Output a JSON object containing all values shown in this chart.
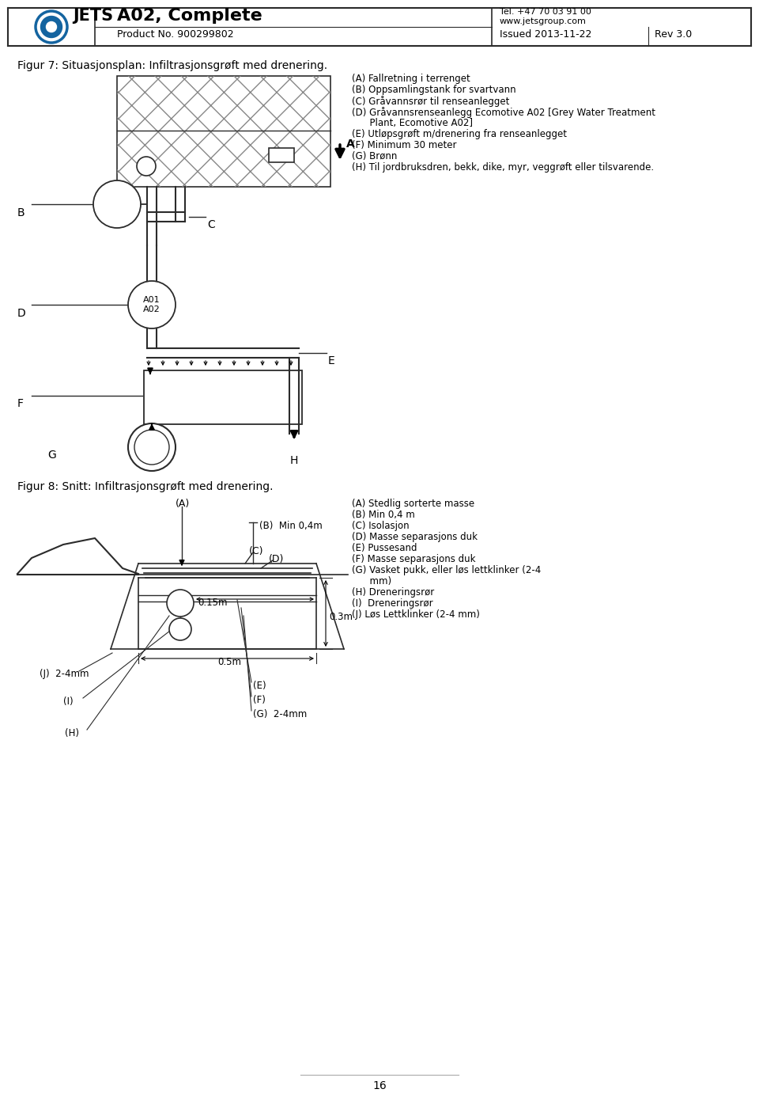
{
  "title": "A02, Complete",
  "product_no": "Product No. 900299802",
  "tel": "Tel. +47 70 03 91 00",
  "website": "www.jetsgroup.com",
  "issued": "Issued 2013-11-22",
  "rev": "Rev 3.0",
  "fig7_title": "Figur 7: Situasjonsplan: Infiltrasjonsgrøft med drenering.",
  "fig8_title": "Figur 8: Snitt: Infiltrasjonsgrøft med drenering.",
  "legend_right_top": [
    "(A) Fallretning i terrenget",
    "(B) Oppsamlingstank for svartvann",
    "(C) Gråvannsrør til renseanlegget",
    "(D) Gråvannsrenseanlegg Ecomotive A02 [Grey Water Treatment",
    "      Plant, Ecomotive A02]",
    "(E) Utløpsgrøft m/drenering fra renseanlegget",
    "(F) Minimum 30 meter",
    "(G) Brønn",
    "(H) Til jordbruksdren, bekk, dike, myr, veggrøft eller tilsvarende."
  ],
  "legend_right_bottom": [
    "(A) Stedlig sorterte masse",
    "(B) Min 0,4 m",
    "(C) Isolasjon",
    "(D) Masse separasjons duk",
    "(E) Pussesand",
    "(F) Masse separasjons duk",
    "(G) Vasket pukk, eller løs lettklinker (2-4",
    "      mm)",
    "(H) Dreneringsrør",
    "(I)  Dreneringsrør",
    "(J) Løs Lettklinker (2-4 mm)"
  ],
  "page_num": "16",
  "bg_color": "#ffffff",
  "line_color": "#2b2b2b"
}
